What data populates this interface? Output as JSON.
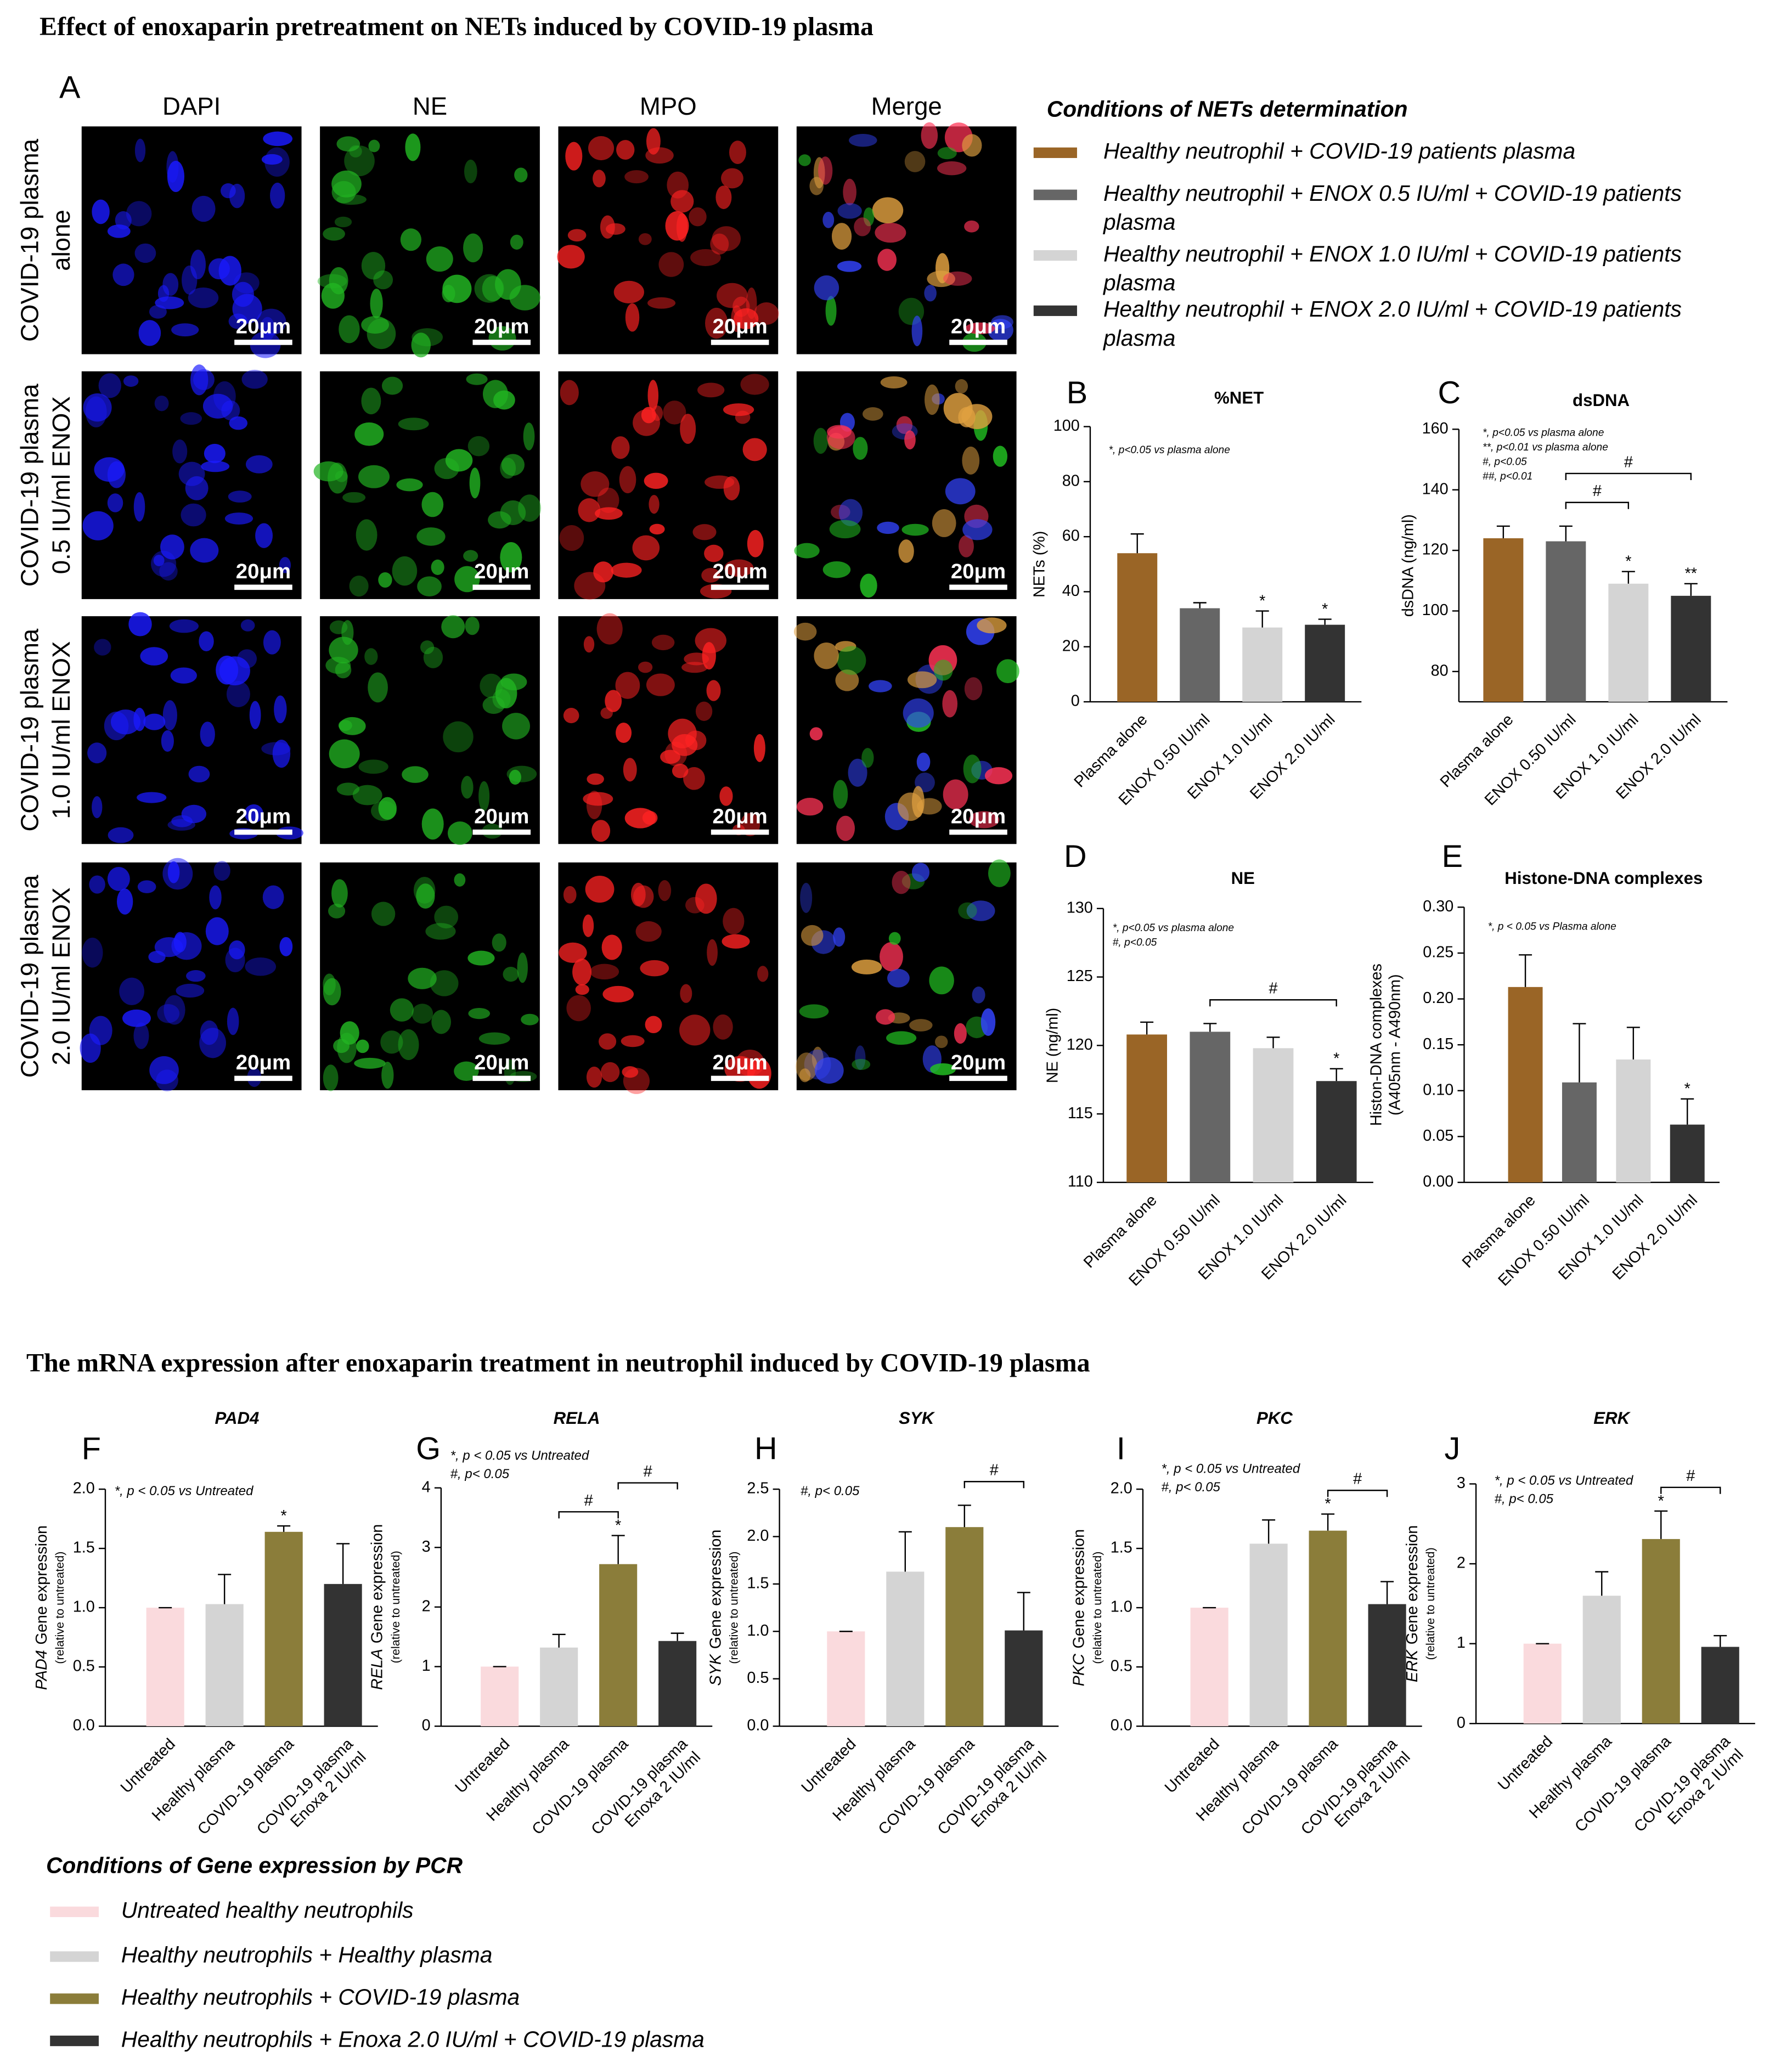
{
  "title": "Effect of enoxaparin pretreatment on NETs induced by COVID-19 plasma",
  "panel_a": {
    "label": "A",
    "columns": [
      "DAPI",
      "NE",
      "MPO",
      "Merge"
    ],
    "rows": [
      [
        "COVID-19 plasma",
        "alone"
      ],
      [
        "COVID-19 plasma",
        "0.5 IU/ml ENOX"
      ],
      [
        "COVID-19 plasma",
        "1.0 IU/ml ENOX"
      ],
      [
        "COVID-19 plasma",
        "2.0 IU/ml ENOX"
      ]
    ],
    "scale_bar": "20μm"
  },
  "nets_legend": {
    "title": "Conditions of NETs determination",
    "items": [
      {
        "lines": [
          "Healthy neutrophil + COVID-19 patients plasma"
        ],
        "color": "#9a6526"
      },
      {
        "lines": [
          "Healthy neutrophil + ENOX 0.5 IU/ml + COVID-19 patients",
          "plasma"
        ],
        "color": "#666666"
      },
      {
        "lines": [
          "Healthy neutrophil + ENOX 1.0 IU/ml + COVID-19 patients",
          "plasma"
        ],
        "color": "#d4d4d4"
      },
      {
        "lines": [
          "Healthy neutrophil + ENOX 2.0 IU/ml + COVID-19 patients",
          "plasma"
        ],
        "color": "#333333"
      }
    ]
  },
  "mrna_title": "The mRNA expression after enoxaparin treatment in neutrophil induced by COVID-19 plasma",
  "pcr_legend": {
    "title": "Conditions of Gene expression by PCR",
    "items": [
      {
        "lines": [
          "Untreated healthy neutrophils"
        ],
        "color": "#fadadd"
      },
      {
        "lines": [
          "Healthy neutrophils + Healthy plasma"
        ],
        "color": "#d4d4d4"
      },
      {
        "lines": [
          "Healthy neutrophils + COVID-19 plasma"
        ],
        "color": "#8b7d3a"
      },
      {
        "lines": [
          "Healthy neutrophils + Enoxa 2.0 IU/ml + COVID-19 plasma"
        ],
        "color": "#333333"
      }
    ]
  },
  "chart_data": [
    {
      "type": "bar",
      "panel": "B",
      "title": "%NET",
      "ylabel": [
        "NETs (%)"
      ],
      "annotations": [
        "*, p<0.05 vs plasma alone"
      ],
      "categories": [
        "Plasma alone",
        "ENOX 0.50 IU/ml",
        "ENOX 1.0 IU/ml",
        "ENOX 2.0 IU/ml"
      ],
      "values": [
        54,
        34,
        27,
        28
      ],
      "errors": [
        7,
        2,
        6,
        2
      ],
      "colors": [
        "#9a6526",
        "#666666",
        "#d4d4d4",
        "#333333"
      ],
      "markers": [
        null,
        null,
        "*",
        "*"
      ],
      "brackets": [],
      "ylim": [
        0,
        100
      ],
      "yticks": [
        0,
        20,
        40,
        60,
        80,
        100
      ]
    },
    {
      "type": "bar",
      "panel": "C",
      "title": "dsDNA",
      "ylabel": [
        "dsDNA (ng/ml)"
      ],
      "annotations": [
        "*, p<0.05 vs plasma alone",
        "**, p<0.01 vs plasma alone",
        "#, p<0.05",
        "##, p<0.01"
      ],
      "categories": [
        "Plasma alone",
        "ENOX 0.50 IU/ml",
        "ENOX 1.0 IU/ml",
        "ENOX 2.0 IU/ml"
      ],
      "values": [
        124,
        123,
        109,
        105
      ],
      "errors": [
        4,
        5,
        4,
        4
      ],
      "colors": [
        "#9a6526",
        "#666666",
        "#d4d4d4",
        "#333333"
      ],
      "markers": [
        null,
        null,
        "*",
        "**"
      ],
      "brackets": [
        {
          "label": "#",
          "between": [
            1,
            2
          ]
        },
        {
          "label": "#",
          "between": [
            1,
            3
          ]
        }
      ],
      "ylim": [
        70,
        160
      ],
      "yticks": [
        80,
        100,
        120,
        140,
        160
      ]
    },
    {
      "type": "bar",
      "panel": "D",
      "title": "NE",
      "ylabel": [
        "NE (ng/ml)"
      ],
      "annotations": [
        "*, p<0.05 vs plasma alone",
        "#, p<0.05"
      ],
      "categories": [
        "Plasma alone",
        "ENOX 0.50 IU/ml",
        "ENOX 1.0 IU/ml",
        "ENOX 2.0 IU/ml"
      ],
      "values": [
        120.8,
        121,
        119.8,
        117.4
      ],
      "errors": [
        0.9,
        0.6,
        0.8,
        0.9
      ],
      "colors": [
        "#9a6526",
        "#666666",
        "#d4d4d4",
        "#333333"
      ],
      "markers": [
        null,
        null,
        null,
        "*"
      ],
      "brackets": [
        {
          "label": "#",
          "between": [
            1,
            3
          ]
        }
      ],
      "ylim": [
        110,
        130
      ],
      "yticks": [
        110,
        115,
        120,
        125,
        130
      ]
    },
    {
      "type": "bar",
      "panel": "E",
      "title": "Histone-DNA complexes",
      "ylabel": [
        "Histon-DNA complexes",
        "(A405nm - A490nm)"
      ],
      "annotations": [
        "*, p < 0.05 vs Plasma alone"
      ],
      "categories": [
        "Plasma alone",
        "ENOX 0.50 IU/ml",
        "ENOX 1.0 IU/ml",
        "ENOX 2.0 IU/ml"
      ],
      "values": [
        0.213,
        0.109,
        0.134,
        0.063
      ],
      "errors": [
        0.035,
        0.064,
        0.035,
        0.028
      ],
      "colors": [
        "#9a6526",
        "#666666",
        "#d4d4d4",
        "#333333"
      ],
      "markers": [
        null,
        null,
        null,
        "*"
      ],
      "brackets": [],
      "ylim": [
        0,
        0.3
      ],
      "yticks": [
        {
          "value": 0,
          "label": "0.00"
        },
        {
          "value": 0.05,
          "label": "0.05"
        },
        {
          "value": 0.1,
          "label": "0.10"
        },
        {
          "value": 0.15,
          "label": "0.15"
        },
        {
          "value": 0.2,
          "label": "0.20"
        },
        {
          "value": 0.25,
          "label": "0.25"
        },
        {
          "value": 0.3,
          "label": "0.30"
        }
      ]
    },
    {
      "type": "bar",
      "panel": "F",
      "title": "PAD4",
      "ylabel": [
        "Gene expression",
        "(relative to untreated)"
      ],
      "annotations": [
        "*, p < 0.05 vs Untreated"
      ],
      "categories": [
        "Untreated",
        "Healthy plasma",
        "COVID-19 plasma",
        [
          "COVID-19 plasma",
          "Enoxa 2 IU/ml"
        ]
      ],
      "values": [
        1.0,
        1.03,
        1.64,
        1.2
      ],
      "errors": [
        0,
        0.25,
        0.05,
        0.34
      ],
      "colors": [
        "#fadadd",
        "#d4d4d4",
        "#8b7d3a",
        "#333333"
      ],
      "markers": [
        null,
        null,
        "*",
        null
      ],
      "brackets": [],
      "ylim": [
        0,
        2
      ],
      "yticks": [
        {
          "value": 0,
          "label": "0.0"
        },
        {
          "value": 0.5,
          "label": "0.5"
        },
        {
          "value": 1,
          "label": "1.0"
        },
        {
          "value": 1.5,
          "label": "1.5"
        },
        {
          "value": 2,
          "label": "2.0"
        }
      ]
    },
    {
      "type": "bar",
      "panel": "G",
      "title": "RELA",
      "ylabel": [
        "Gene expression",
        "(relative to untreated)"
      ],
      "annotations": [
        "*, p < 0.05 vs Untreated",
        "#, p< 0.05"
      ],
      "categories": [
        "Untreated",
        "Healthy plasma",
        "COVID-19 plasma",
        [
          "COVID-19 plasma",
          "Enoxa 2 IU/ml"
        ]
      ],
      "values": [
        1.0,
        1.32,
        2.72,
        1.43
      ],
      "errors": [
        0,
        0.22,
        0.48,
        0.13
      ],
      "colors": [
        "#fadadd",
        "#d4d4d4",
        "#8b7d3a",
        "#333333"
      ],
      "markers": [
        null,
        null,
        "*",
        null
      ],
      "brackets": [
        {
          "label": "#",
          "between": [
            1,
            2
          ]
        },
        {
          "label": "#",
          "between": [
            2,
            3
          ]
        }
      ],
      "ylim": [
        0,
        4
      ],
      "yticks": [
        0,
        1,
        2,
        3,
        4
      ]
    },
    {
      "type": "bar",
      "panel": "H",
      "title": "SYK",
      "ylabel": [
        "Gene expression",
        "(relative to untreated)"
      ],
      "annotations": [
        "#, p< 0.05"
      ],
      "categories": [
        "Untreated",
        "Healthy plasma",
        "COVID-19 plasma",
        [
          "COVID-19 plasma",
          "Enoxa 2 IU/ml"
        ]
      ],
      "values": [
        1.0,
        1.63,
        2.1,
        1.01
      ],
      "errors": [
        0,
        0.42,
        0.23,
        0.4
      ],
      "colors": [
        "#fadadd",
        "#d4d4d4",
        "#8b7d3a",
        "#333333"
      ],
      "markers": [
        null,
        null,
        null,
        null
      ],
      "brackets": [
        {
          "label": "#",
          "between": [
            2,
            3
          ]
        }
      ],
      "ylim": [
        0,
        2.5
      ],
      "yticks": [
        {
          "value": 0,
          "label": "0.0"
        },
        {
          "value": 0.5,
          "label": "0.5"
        },
        {
          "value": 1,
          "label": "1.0"
        },
        {
          "value": 1.5,
          "label": "1.5"
        },
        {
          "value": 2,
          "label": "2.0"
        },
        {
          "value": 2.5,
          "label": "2.5"
        }
      ]
    },
    {
      "type": "bar",
      "panel": "I",
      "title": "PKC",
      "ylabel": [
        "Gene expression",
        "(relative to untreated)"
      ],
      "annotations": [
        "*, p < 0.05 vs Untreated",
        "#, p< 0.05"
      ],
      "categories": [
        "Untreated",
        "Healthy plasma",
        "COVID-19 plasma",
        [
          "COVID-19 plasma",
          "Enoxa 2 IU/ml"
        ]
      ],
      "values": [
        1.0,
        1.54,
        1.65,
        1.03
      ],
      "errors": [
        0,
        0.2,
        0.14,
        0.19
      ],
      "colors": [
        "#fadadd",
        "#d4d4d4",
        "#8b7d3a",
        "#333333"
      ],
      "markers": [
        null,
        null,
        "*",
        null
      ],
      "brackets": [
        {
          "label": "#",
          "between": [
            2,
            3
          ]
        }
      ],
      "ylim": [
        0,
        2
      ],
      "yticks": [
        {
          "value": 0,
          "label": "0.0"
        },
        {
          "value": 0.5,
          "label": "0.5"
        },
        {
          "value": 1,
          "label": "1.0"
        },
        {
          "value": 1.5,
          "label": "1.5"
        },
        {
          "value": 2,
          "label": "2.0"
        }
      ]
    },
    {
      "type": "bar",
      "panel": "J",
      "title": "ERK",
      "ylabel": [
        "Gene expression",
        "(relative to untreated)"
      ],
      "annotations": [
        "*, p < 0.05 vs Untreated",
        "#, p< 0.05"
      ],
      "categories": [
        "Untreated",
        "Healthy plasma",
        "COVID-19 plasma",
        [
          "COVID-19 plasma",
          "Enoxa 2 IU/ml"
        ]
      ],
      "values": [
        1.0,
        1.6,
        2.31,
        0.96
      ],
      "errors": [
        0,
        0.3,
        0.35,
        0.14
      ],
      "colors": [
        "#fadadd",
        "#d4d4d4",
        "#8b7d3a",
        "#333333"
      ],
      "markers": [
        null,
        null,
        "*",
        null
      ],
      "brackets": [
        {
          "label": "#",
          "between": [
            2,
            3
          ]
        }
      ],
      "ylim": [
        0,
        3
      ],
      "yticks": [
        0,
        1,
        2,
        3
      ]
    }
  ]
}
